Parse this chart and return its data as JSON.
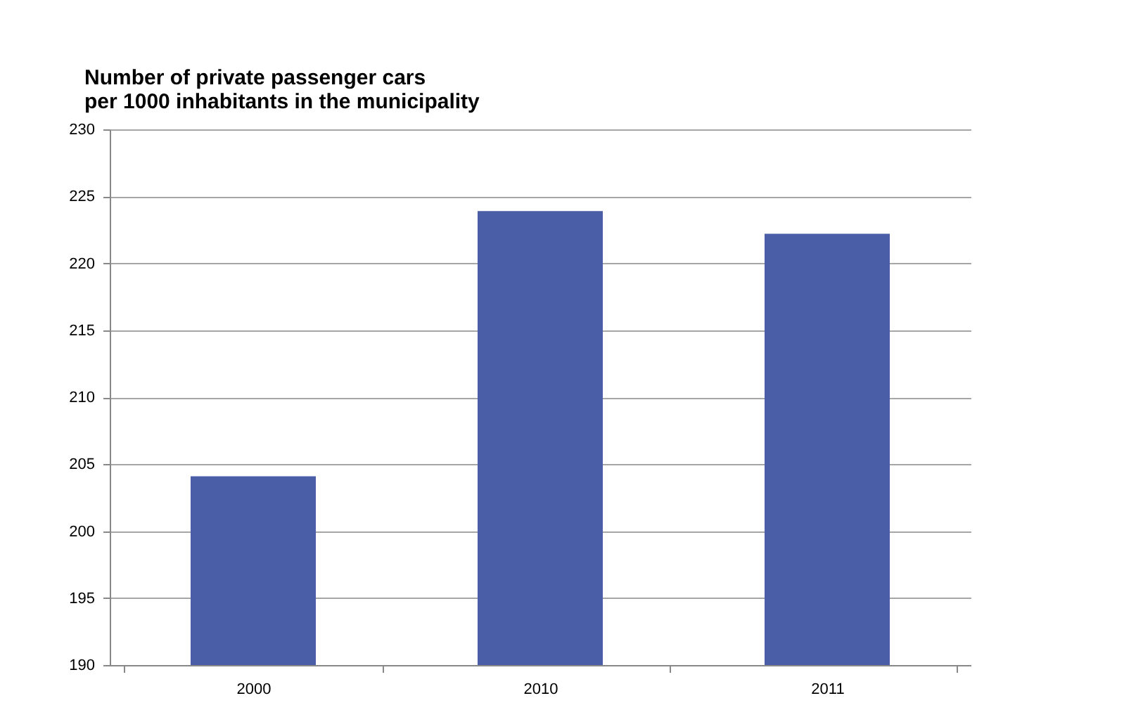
{
  "chart_data": {
    "type": "bar",
    "title": [
      "Number of private passenger cars",
      "per 1000 inhabitants in the municipality"
    ],
    "categories": [
      "2000",
      "2010",
      "2011"
    ],
    "values": [
      204.1,
      223.9,
      222.2
    ],
    "color": "#4a5ea8",
    "ylim": [
      190,
      230
    ],
    "yticks": [
      190,
      195,
      200,
      205,
      210,
      215,
      220,
      225,
      230
    ],
    "grid": "y"
  }
}
